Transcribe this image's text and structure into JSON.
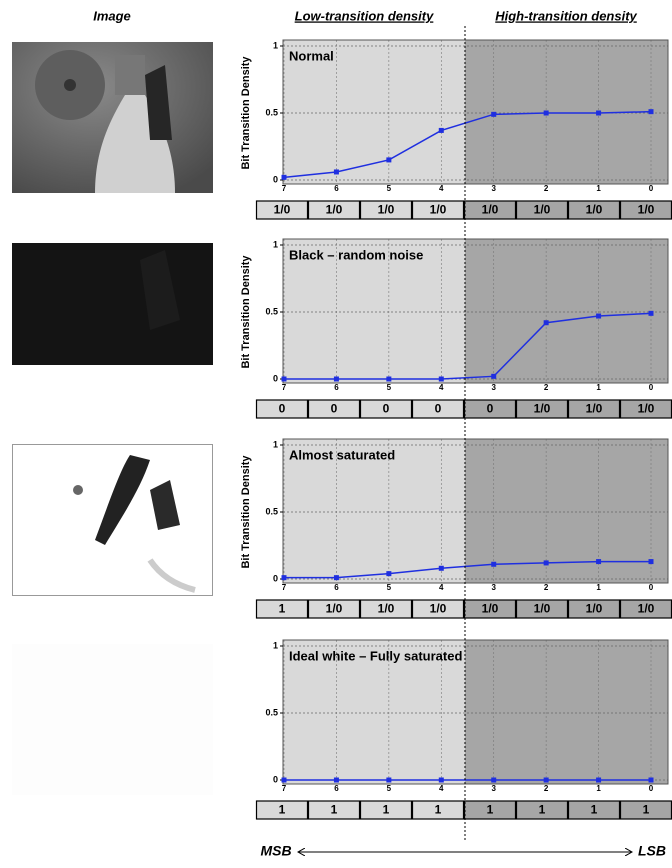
{
  "header": {
    "image": "Image",
    "low": "Low-transition density",
    "high": "High-transition density"
  },
  "footer": {
    "msb": "MSB",
    "lsb": "LSB"
  },
  "chart_data": [
    {
      "type": "line",
      "title": "Normal",
      "ylabel": "Bit Transition Density",
      "categories": [
        "7",
        "6",
        "5",
        "4",
        "3",
        "2",
        "1",
        "0"
      ],
      "values": [
        0.02,
        0.06,
        0.15,
        0.37,
        0.49,
        0.5,
        0.5,
        0.51
      ],
      "color": "#1f2fe0",
      "ylim": [
        0,
        1
      ],
      "yticks": [
        0,
        0.5,
        1
      ],
      "grid": true,
      "bit_labels": [
        "1/0",
        "1/0",
        "1/0",
        "1/0",
        "1/0",
        "1/0",
        "1/0",
        "1/0"
      ]
    },
    {
      "type": "line",
      "title": "Black – random noise",
      "ylabel": "Bit Transition Density",
      "categories": [
        "7",
        "6",
        "5",
        "4",
        "3",
        "2",
        "1",
        "0"
      ],
      "values": [
        0,
        0,
        0,
        0,
        0.02,
        0.42,
        0.47,
        0.49
      ],
      "color": "#1f2fe0",
      "ylim": [
        0,
        1
      ],
      "yticks": [
        0,
        0.5,
        1
      ],
      "grid": true,
      "bit_labels": [
        "0",
        "0",
        "0",
        "0",
        "0",
        "1/0",
        "1/0",
        "1/0"
      ]
    },
    {
      "type": "line",
      "title": "Almost saturated",
      "ylabel": "Bit Transition Density",
      "categories": [
        "7",
        "6",
        "5",
        "4",
        "3",
        "2",
        "1",
        "0"
      ],
      "values": [
        0.01,
        0.01,
        0.04,
        0.08,
        0.11,
        0.12,
        0.13,
        0.13
      ],
      "color": "#1f2fe0",
      "ylim": [
        0,
        1
      ],
      "yticks": [
        0,
        0.5,
        1
      ],
      "grid": true,
      "bit_labels": [
        "1",
        "1/0",
        "1/0",
        "1/0",
        "1/0",
        "1/0",
        "1/0",
        "1/0"
      ]
    },
    {
      "type": "line",
      "title": "Ideal white – Fully saturated",
      "categories": [
        "7",
        "6",
        "5",
        "4",
        "3",
        "2",
        "1",
        "0"
      ],
      "values": [
        0,
        0,
        0,
        0,
        0,
        0,
        0,
        0
      ],
      "color": "#1f2fe0",
      "ylim": [
        0,
        1
      ],
      "yticks": [
        0,
        0.5,
        1
      ],
      "grid": true,
      "bit_labels": [
        "1",
        "1",
        "1",
        "1",
        "1",
        "1",
        "1",
        "1"
      ]
    }
  ]
}
